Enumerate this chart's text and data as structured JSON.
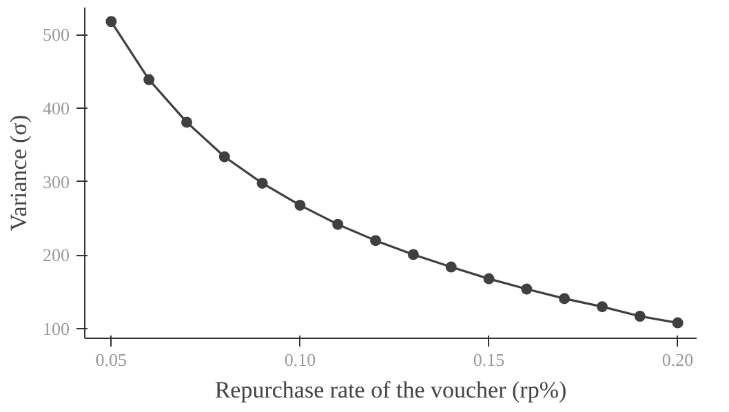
{
  "chart_data": {
    "type": "line",
    "xlabel": "Repurchase rate of the voucher (rp%)",
    "ylabel": "Variance (σ)",
    "x": [
      0.05,
      0.06,
      0.07,
      0.08,
      0.09,
      0.1,
      0.11,
      0.12,
      0.13,
      0.14,
      0.15,
      0.16,
      0.17,
      0.18,
      0.19,
      0.2
    ],
    "series": [
      {
        "color": "#404040",
        "values": [
          518,
          439,
          381,
          334,
          298,
          268,
          242,
          220,
          201,
          184,
          168,
          154,
          141,
          130,
          117,
          108
        ]
      }
    ],
    "xlim": [
      0.043,
      0.205
    ],
    "ylim": [
      87,
      537
    ],
    "xticks": [
      0.05,
      {
        "value": 0.1,
        "label": "0.10"
      },
      0.15,
      {
        "value": 0.2,
        "label": "0.20"
      }
    ],
    "yticks": [
      100,
      200,
      300,
      400,
      500
    ],
    "marker": "circle",
    "line_style": "solid",
    "grid": false
  }
}
